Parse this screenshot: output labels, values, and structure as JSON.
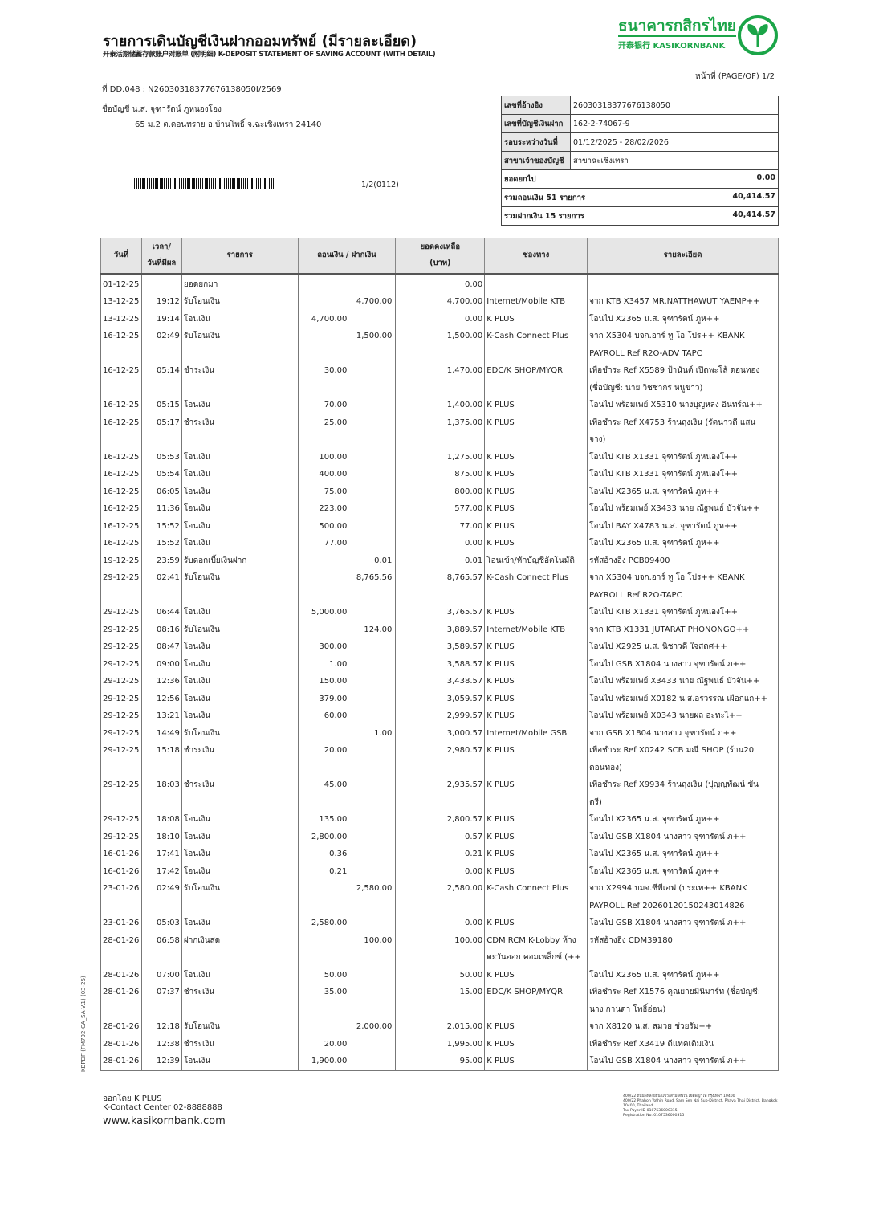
{
  "header": {
    "title": "รายการเดินบัญชีเงินฝากออมทรัพย์ (มีรายละเอียด)",
    "subtitle": "开泰活期储蓄存款账户对账单 (附明细) K-DEPOSIT STATEMENT OF SAVING ACCOUNT (WITH DETAIL)",
    "bank_name_th": "ธนาคารกสิกรไทย",
    "bank_name_en": "开泰银行 KASIKORNBANK",
    "brand_color": "#1ba548",
    "page": "หน้าที่ (PAGE/OF) 1/2"
  },
  "customer": {
    "doc_no": "ที่ DD.048 : N26030318377676138050I/2569",
    "account_name": "ชื่อบัญชี  น.ส. จุฑารัตน์ ภูหนองโอง",
    "address": "65 ม.2 ต.ดอนทราย อ.บ้านโพธิ์ จ.ฉะเชิงเทรา 24140",
    "barcode_code": "1/2(0112)"
  },
  "summary": [
    {
      "label": "เลขที่อ้างอิง",
      "value": "26030318377676138050"
    },
    {
      "label": "เลขที่บัญชีเงินฝาก",
      "value": "162-2-74067-9"
    },
    {
      "label": "รอบระหว่างวันที่",
      "value": "01/12/2025 - 28/02/2026"
    },
    {
      "label": "สาขาเจ้าของบัญชี",
      "value": "สาขาฉะเชิงเทรา"
    }
  ],
  "totals": [
    {
      "label": "ยอดยกไป",
      "value": "0.00"
    },
    {
      "label": "รวมถอนเงิน 51 รายการ",
      "value": "40,414.57"
    },
    {
      "label": "รวมฝากเงิน 15 รายการ",
      "value": "40,414.57"
    }
  ],
  "table": {
    "headers": [
      "วันที่",
      "เวลา/\nวันที่มีผล",
      "รายการ",
      "ถอนเงิน / ฝากเงิน",
      "ยอดคงเหลือ\n(บาท)",
      "ช่องทาง",
      "รายละเอียด"
    ],
    "rows": [
      {
        "date": "01-12-25",
        "time": "",
        "desc": "ยอดยกมา",
        "wd": "",
        "dp": "",
        "bal": "0.00",
        "ch": "",
        "det": ""
      },
      {
        "date": "13-12-25",
        "time": "19:12",
        "desc": "รับโอนเงิน",
        "wd": "",
        "dp": "4,700.00",
        "bal": "4,700.00",
        "ch": "Internet/Mobile KTB",
        "det": "จาก KTB X3457 MR.NATTHAWUT YAEMP++"
      },
      {
        "date": "13-12-25",
        "time": "19:14",
        "desc": "โอนเงิน",
        "wd": "4,700.00",
        "dp": "",
        "bal": "0.00",
        "ch": "K PLUS",
        "det": "โอนไป X2365 น.ส. จุฑารัตน์ ภูห++"
      },
      {
        "date": "16-12-25",
        "time": "02:49",
        "desc": "รับโอนเงิน",
        "wd": "",
        "dp": "1,500.00",
        "bal": "1,500.00",
        "ch": "K-Cash Connect Plus",
        "det": "จาก X5304 บจก.อาร์ ทู โอ โปร++ KBANK\nPAYROLL Ref R2O-ADV TAPC"
      },
      {
        "date": "16-12-25",
        "time": "05:14",
        "desc": "ชำระเงิน",
        "wd": "30.00",
        "dp": "",
        "bal": "1,470.00",
        "ch": "EDC/K SHOP/MYQR",
        "det": "เพื่อชำระ Ref X5589 ป้านันต์ เปิดพะโล้ ดอนทอง\n(ชื่อบัญชี: นาย วิชชากร หนูขาว)"
      },
      {
        "date": "16-12-25",
        "time": "05:15",
        "desc": "โอนเงิน",
        "wd": "70.00",
        "dp": "",
        "bal": "1,400.00",
        "ch": "K PLUS",
        "det": "โอนไป พร้อมเพย์ X5310 นางบุญหลง อินทร์ณ++"
      },
      {
        "date": "16-12-25",
        "time": "05:17",
        "desc": "ชำระเงิน",
        "wd": "25.00",
        "dp": "",
        "bal": "1,375.00",
        "ch": "K PLUS",
        "det": "เพื่อชำระ Ref X4753 ร้านถุงเงิน (รัตนาวดี แสน\nจาง)"
      },
      {
        "date": "16-12-25",
        "time": "05:53",
        "desc": "โอนเงิน",
        "wd": "100.00",
        "dp": "",
        "bal": "1,275.00",
        "ch": "K PLUS",
        "det": "โอนไป KTB X1331 จุฑารัตน์ ภูหนองโ++"
      },
      {
        "date": "16-12-25",
        "time": "05:54",
        "desc": "โอนเงิน",
        "wd": "400.00",
        "dp": "",
        "bal": "875.00",
        "ch": "K PLUS",
        "det": "โอนไป KTB X1331 จุฑารัตน์ ภูหนองโ++"
      },
      {
        "date": "16-12-25",
        "time": "06:05",
        "desc": "โอนเงิน",
        "wd": "75.00",
        "dp": "",
        "bal": "800.00",
        "ch": "K PLUS",
        "det": "โอนไป X2365 น.ส. จุฑารัตน์ ภูห++"
      },
      {
        "date": "16-12-25",
        "time": "11:36",
        "desc": "โอนเงิน",
        "wd": "223.00",
        "dp": "",
        "bal": "577.00",
        "ch": "K PLUS",
        "det": "โอนไป พร้อมเพย์ X3433 นาย ณัฐพนธ์ บัวจัน++"
      },
      {
        "date": "16-12-25",
        "time": "15:52",
        "desc": "โอนเงิน",
        "wd": "500.00",
        "dp": "",
        "bal": "77.00",
        "ch": "K PLUS",
        "det": "โอนไป BAY X4783 น.ส. จุฑารัตน์ ภูห++"
      },
      {
        "date": "16-12-25",
        "time": "15:52",
        "desc": "โอนเงิน",
        "wd": "77.00",
        "dp": "",
        "bal": "0.00",
        "ch": "K PLUS",
        "det": "โอนไป X2365 น.ส. จุฑารัตน์ ภูห++"
      },
      {
        "date": "19-12-25",
        "time": "23:59",
        "desc": "รับดอกเบี้ยเงินฝาก",
        "wd": "",
        "dp": "0.01",
        "bal": "0.01",
        "ch": "โอนเข้า/หักบัญชีอัตโนมัติ",
        "det": "รหัสอ้างอิง PCB09400"
      },
      {
        "date": "29-12-25",
        "time": "02:41",
        "desc": "รับโอนเงิน",
        "wd": "",
        "dp": "8,765.56",
        "bal": "8,765.57",
        "ch": "K-Cash Connect Plus",
        "det": "จาก X5304 บจก.อาร์ ทู โอ โปร++ KBANK\nPAYROLL Ref R2O-TAPC"
      },
      {
        "date": "29-12-25",
        "time": "06:44",
        "desc": "โอนเงิน",
        "wd": "5,000.00",
        "dp": "",
        "bal": "3,765.57",
        "ch": "K PLUS",
        "det": "โอนไป KTB X1331 จุฑารัตน์ ภูหนองโ++"
      },
      {
        "date": "29-12-25",
        "time": "08:16",
        "desc": "รับโอนเงิน",
        "wd": "",
        "dp": "124.00",
        "bal": "3,889.57",
        "ch": "Internet/Mobile KTB",
        "det": "จาก KTB X1331 JUTARAT PHONONGO++"
      },
      {
        "date": "29-12-25",
        "time": "08:47",
        "desc": "โอนเงิน",
        "wd": "300.00",
        "dp": "",
        "bal": "3,589.57",
        "ch": "K PLUS",
        "det": "โอนไป X2925 น.ส. นิชาวดี ใจสดศ++"
      },
      {
        "date": "29-12-25",
        "time": "09:00",
        "desc": "โอนเงิน",
        "wd": "1.00",
        "dp": "",
        "bal": "3,588.57",
        "ch": "K PLUS",
        "det": "โอนไป GSB X1804 นางสาว จุฑารัตน์ ภ++"
      },
      {
        "date": "29-12-25",
        "time": "12:36",
        "desc": "โอนเงิน",
        "wd": "150.00",
        "dp": "",
        "bal": "3,438.57",
        "ch": "K PLUS",
        "det": "โอนไป พร้อมเพย์ X3433 นาย ณัฐพนธ์ บัวจัน++"
      },
      {
        "date": "29-12-25",
        "time": "12:56",
        "desc": "โอนเงิน",
        "wd": "379.00",
        "dp": "",
        "bal": "3,059.57",
        "ch": "K PLUS",
        "det": "โอนไป พร้อมเพย์ X0182 น.ส.อรวรรณ เผือกแก++"
      },
      {
        "date": "29-12-25",
        "time": "13:21",
        "desc": "โอนเงิน",
        "wd": "60.00",
        "dp": "",
        "bal": "2,999.57",
        "ch": "K PLUS",
        "det": "โอนไป พร้อมเพย์ X0343 นายผล อะทะไ++"
      },
      {
        "date": "29-12-25",
        "time": "14:49",
        "desc": "รับโอนเงิน",
        "wd": "",
        "dp": "1.00",
        "bal": "3,000.57",
        "ch": "Internet/Mobile GSB",
        "det": "จาก GSB X1804 นางสาว จุฑารัตน์ ภ++"
      },
      {
        "date": "29-12-25",
        "time": "15:18",
        "desc": "ชำระเงิน",
        "wd": "20.00",
        "dp": "",
        "bal": "2,980.57",
        "ch": "K PLUS",
        "det": "เพื่อชำระ Ref X0242 SCB มณี SHOP (ร้าน20\nดอนทอง)"
      },
      {
        "date": "29-12-25",
        "time": "18:03",
        "desc": "ชำระเงิน",
        "wd": "45.00",
        "dp": "",
        "bal": "2,935.57",
        "ch": "K PLUS",
        "det": "เพื่อชำระ Ref X9934 ร้านถุงเงิน (ปุญญพัฒน์ ขัน\nตรี)"
      },
      {
        "date": "29-12-25",
        "time": "18:08",
        "desc": "โอนเงิน",
        "wd": "135.00",
        "dp": "",
        "bal": "2,800.57",
        "ch": "K PLUS",
        "det": "โอนไป X2365 น.ส. จุฑารัตน์ ภูห++"
      },
      {
        "date": "29-12-25",
        "time": "18:10",
        "desc": "โอนเงิน",
        "wd": "2,800.00",
        "dp": "",
        "bal": "0.57",
        "ch": "K PLUS",
        "det": "โอนไป GSB X1804 นางสาว จุฑารัตน์ ภ++"
      },
      {
        "date": "16-01-26",
        "time": "17:41",
        "desc": "โอนเงิน",
        "wd": "0.36",
        "dp": "",
        "bal": "0.21",
        "ch": "K PLUS",
        "det": "โอนไป X2365 น.ส. จุฑารัตน์ ภูห++"
      },
      {
        "date": "16-01-26",
        "time": "17:42",
        "desc": "โอนเงิน",
        "wd": "0.21",
        "dp": "",
        "bal": "0.00",
        "ch": "K PLUS",
        "det": "โอนไป X2365 น.ส. จุฑารัตน์ ภูห++"
      },
      {
        "date": "23-01-26",
        "time": "02:49",
        "desc": "รับโอนเงิน",
        "wd": "",
        "dp": "2,580.00",
        "bal": "2,580.00",
        "ch": "K-Cash Connect Plus",
        "det": "จาก X2994 บมจ.ซีพีเอฟ (ประเท++ KBANK\nPAYROLL Ref 20260120150243014826"
      },
      {
        "date": "23-01-26",
        "time": "05:03",
        "desc": "โอนเงิน",
        "wd": "2,580.00",
        "dp": "",
        "bal": "0.00",
        "ch": "K PLUS",
        "det": "โอนไป GSB X1804 นางสาว จุฑารัตน์ ภ++"
      },
      {
        "date": "28-01-26",
        "time": "06:58",
        "desc": "ฝากเงินสด",
        "wd": "",
        "dp": "100.00",
        "bal": "100.00",
        "ch": "CDM RCM K-Lobby ห้าง\nตะวันออก คอมเพล็กซ์ (++",
        "det": "รหัสอ้างอิง CDM39180"
      },
      {
        "date": "28-01-26",
        "time": "07:00",
        "desc": "โอนเงิน",
        "wd": "50.00",
        "dp": "",
        "bal": "50.00",
        "ch": "K PLUS",
        "det": "โอนไป X2365 น.ส. จุฑารัตน์ ภูห++"
      },
      {
        "date": "28-01-26",
        "time": "07:37",
        "desc": "ชำระเงิน",
        "wd": "35.00",
        "dp": "",
        "bal": "15.00",
        "ch": "EDC/K SHOP/MYQR",
        "det": "เพื่อชำระ Ref X1576 คุณยายมินิมาร์ท (ชื่อบัญชี:\nนาง กานดา โพธิ์อ่อน)"
      },
      {
        "date": "28-01-26",
        "time": "12:18",
        "desc": "รับโอนเงิน",
        "wd": "",
        "dp": "2,000.00",
        "bal": "2,015.00",
        "ch": "K PLUS",
        "det": "จาก X8120 น.ส. สมวย ช่วยรัม++"
      },
      {
        "date": "28-01-26",
        "time": "12:38",
        "desc": "ชำระเงิน",
        "wd": "20.00",
        "dp": "",
        "bal": "1,995.00",
        "ch": "K PLUS",
        "det": "เพื่อชำระ Ref X3419 ดีแทคเติมเงิน"
      },
      {
        "date": "28-01-26",
        "time": "12:39",
        "desc": "โอนเงิน",
        "wd": "1,900.00",
        "dp": "",
        "bal": "95.00",
        "ch": "K PLUS",
        "det": "โอนไป GSB X1804 นางสาว จุฑารัตน์ ภ++"
      }
    ]
  },
  "footer": {
    "issued_by": "ออกโดย K PLUS",
    "contact": "K-Contact Center 02-8888888",
    "website": "www.kasikornbank.com",
    "form_code": "KBPDF (FM702-CA_SA-V.1) (03-25)",
    "address_lines": [
      "400/22 ถนนพหลโยธิน แขวงสามเสนใน เขตพญาไท กรุงเทพฯ 10400",
      "400/22 Phahon Yothin Road, Sam Sen Nai Sub-District, Phaya Thai District, Bangkok 10400, Thailand",
      "Tax Payer ID 0107536000315",
      "Registration No. 0107536000315"
    ]
  }
}
